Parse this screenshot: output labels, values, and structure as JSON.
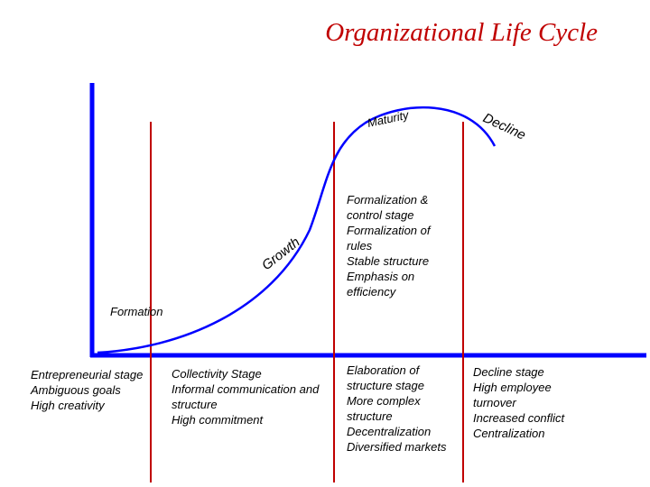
{
  "title": "Organizational Life Cycle",
  "curve_labels": {
    "formation": "Formation",
    "growth": "Growth",
    "maturity": "Maturity",
    "decline": "Decline"
  },
  "maturity_notes": [
    "Formalization & control stage",
    "Formalization of rules",
    "Stable structure",
    "Emphasis on efficiency"
  ],
  "stages": [
    {
      "items": [
        "Entrepreneurial stage",
        "Ambiguous goals",
        "High creativity"
      ]
    },
    {
      "items": [
        "Collectivity Stage",
        "Informal communication and structure",
        "High commitment"
      ]
    },
    {
      "items": [
        "Elaboration of structure stage",
        "More complex structure",
        "Decentralization",
        "Diversified markets"
      ]
    },
    {
      "items": [
        "Decline stage",
        "High employee turnover",
        "Increased conflict",
        "Centralization"
      ]
    }
  ]
}
